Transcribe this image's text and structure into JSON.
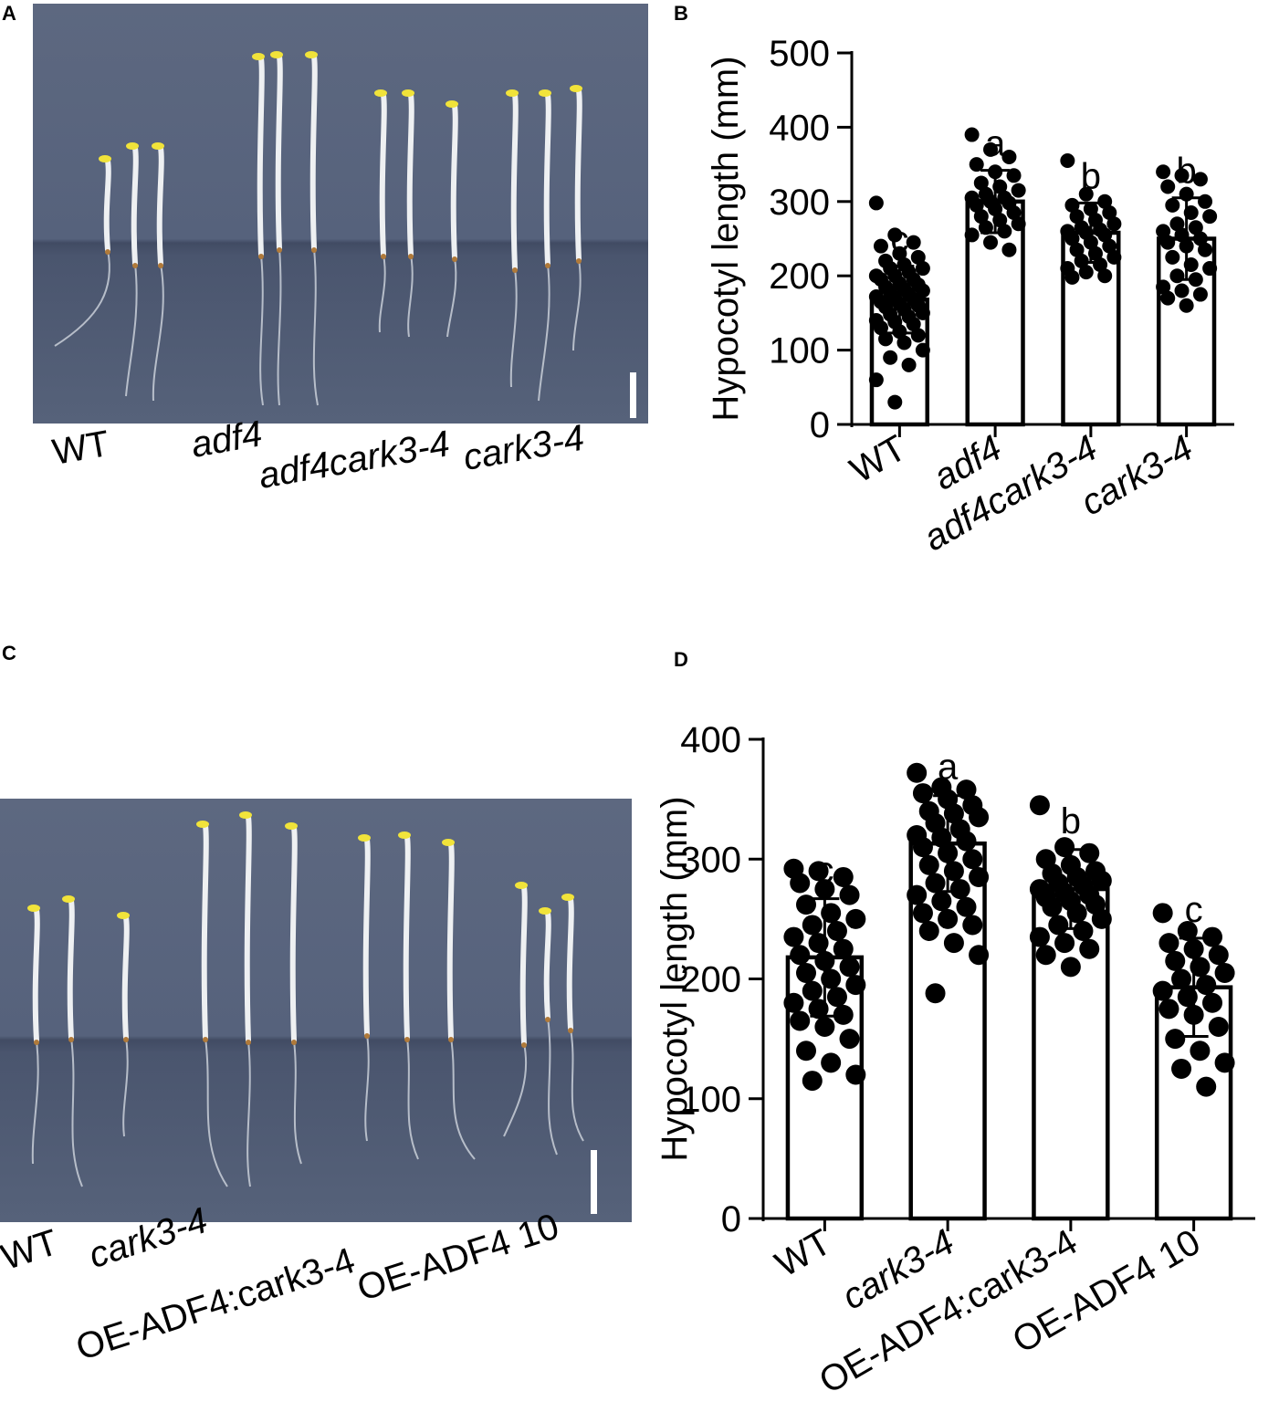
{
  "panels": {
    "A": {
      "letter": "A",
      "labels": [
        {
          "text": "WT",
          "italic": false
        },
        {
          "text": "adf4",
          "italic": true
        },
        {
          "text": "adf4cark3-4",
          "italic": true
        },
        {
          "text": "cark3-4",
          "italic": true
        }
      ]
    },
    "C": {
      "letter": "C",
      "labels": [
        {
          "text": "WT",
          "italic": false
        },
        {
          "text": "cark3-4",
          "italic": true
        },
        {
          "text": "OE-ADF4:cark3-4",
          "italic": false
        },
        {
          "text": "OE-ADF4 10",
          "italic": false
        }
      ]
    }
  },
  "chart_data": [
    {
      "panel": "B",
      "type": "bar",
      "ylabel": "Hypocotyl length (mm)",
      "ylim": [
        0,
        500
      ],
      "yticks": [
        0,
        100,
        200,
        300,
        400,
        500
      ],
      "categories": [
        "WT",
        "adf4",
        "adf4cark3-4",
        "cark3-4"
      ],
      "category_italic": [
        false,
        true,
        true,
        true
      ],
      "values": [
        168,
        300,
        258,
        250
      ],
      "error": [
        45,
        42,
        40,
        55
      ],
      "significance": [
        "c",
        "a",
        "b",
        "b"
      ],
      "points": [
        [
          298,
          255,
          245,
          240,
          230,
          225,
          220,
          215,
          210,
          210,
          205,
          200,
          200,
          195,
          195,
          190,
          188,
          185,
          182,
          180,
          178,
          175,
          172,
          170,
          168,
          165,
          162,
          160,
          158,
          155,
          150,
          148,
          145,
          140,
          138,
          135,
          130,
          125,
          120,
          115,
          110,
          100,
          90,
          80,
          60,
          30
        ],
        [
          390,
          370,
          360,
          350,
          340,
          335,
          325,
          320,
          315,
          310,
          305,
          305,
          300,
          298,
          295,
          290,
          285,
          280,
          275,
          270,
          265,
          260,
          255,
          245,
          235
        ],
        [
          355,
          310,
          300,
          295,
          290,
          285,
          280,
          275,
          270,
          265,
          262,
          260,
          258,
          255,
          250,
          245,
          240,
          235,
          230,
          225,
          220,
          215,
          210,
          205,
          200,
          198
        ],
        [
          340,
          335,
          330,
          320,
          310,
          300,
          295,
          285,
          280,
          270,
          265,
          260,
          255,
          250,
          245,
          240,
          235,
          225,
          215,
          210,
          200,
          195,
          185,
          180,
          175,
          170,
          160
        ]
      ]
    },
    {
      "panel": "D",
      "type": "bar",
      "ylabel": "Hypocotyl length (mm)",
      "ylim": [
        0,
        400
      ],
      "yticks": [
        0,
        100,
        200,
        300,
        400
      ],
      "categories": [
        "WT",
        "cark3-4",
        "OE-ADF4:cark3-4",
        "OE-ADF4 10"
      ],
      "category_italic": [
        false,
        true,
        false,
        false
      ],
      "values": [
        218,
        313,
        275,
        193
      ],
      "error": [
        49,
        40,
        33,
        41
      ],
      "significance": [
        "c",
        "a",
        "b",
        "c"
      ],
      "points": [
        [
          292,
          290,
          285,
          280,
          275,
          270,
          262,
          255,
          250,
          245,
          240,
          235,
          230,
          225,
          220,
          215,
          210,
          205,
          200,
          195,
          190,
          185,
          180,
          175,
          170,
          165,
          160,
          150,
          140,
          130,
          120,
          115
        ],
        [
          372,
          360,
          358,
          355,
          350,
          345,
          340,
          338,
          335,
          330,
          325,
          320,
          318,
          315,
          310,
          305,
          300,
          295,
          290,
          285,
          280,
          275,
          270,
          265,
          260,
          255,
          250,
          245,
          240,
          230,
          220,
          188
        ],
        [
          345,
          310,
          305,
          300,
          295,
          290,
          288,
          285,
          282,
          280,
          278,
          275,
          272,
          270,
          268,
          265,
          262,
          260,
          255,
          250,
          245,
          240,
          235,
          230,
          225,
          220,
          210
        ],
        [
          255,
          240,
          235,
          230,
          225,
          220,
          215,
          210,
          205,
          200,
          195,
          190,
          185,
          180,
          175,
          170,
          160,
          150,
          140,
          130,
          125,
          110
        ]
      ]
    }
  ]
}
